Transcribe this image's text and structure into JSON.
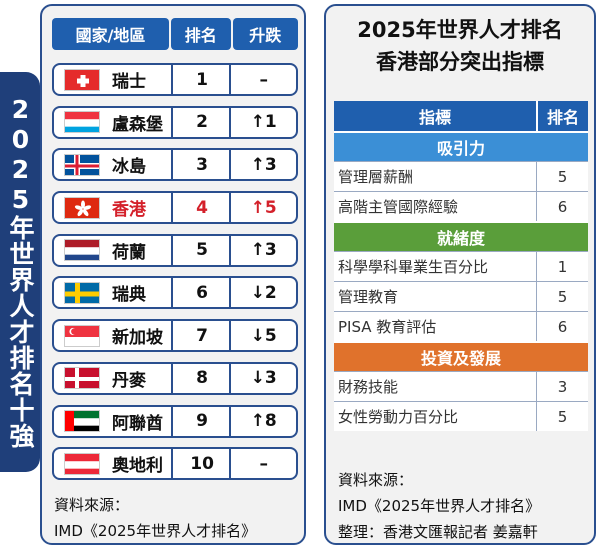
{
  "left": {
    "vertical_title": "2025年世界人才排名十強",
    "headers": {
      "country": "國家/地區",
      "rank": "排名",
      "change": "升跌"
    },
    "rows": [
      {
        "name": "瑞士",
        "rank": "1",
        "change": "–",
        "flag": "switzerland-flag"
      },
      {
        "name": "盧森堡",
        "rank": "2",
        "change": "↑1",
        "flag": "luxembourg-flag"
      },
      {
        "name": "冰島",
        "rank": "3",
        "change": "↑3",
        "flag": "iceland-flag"
      },
      {
        "name": "香港",
        "rank": "4",
        "change": "↑5",
        "flag": "hong-kong-flag"
      },
      {
        "name": "荷蘭",
        "rank": "5",
        "change": "↑3",
        "flag": "netherlands-flag"
      },
      {
        "name": "瑞典",
        "rank": "6",
        "change": "↓2",
        "flag": "sweden-flag"
      },
      {
        "name": "新加坡",
        "rank": "7",
        "change": "↓5",
        "flag": "singapore-flag"
      },
      {
        "name": "丹麥",
        "rank": "8",
        "change": "↓3",
        "flag": "denmark-flag"
      },
      {
        "name": "阿聯酋",
        "rank": "9",
        "change": "↑8",
        "flag": "uae-flag"
      },
      {
        "name": "奧地利",
        "rank": "10",
        "change": "–",
        "flag": "austria-flag"
      }
    ],
    "source_label": "資料來源：",
    "source_text": "IMD《2025年世界人才排名》"
  },
  "right": {
    "title_line1": "2025年世界人才排名",
    "title_line2": "香港部分突出指標",
    "headers": {
      "indicator": "指標",
      "rank": "排名"
    },
    "categories": [
      {
        "name": "吸引力",
        "items": [
          {
            "indicator": "管理層薪酬",
            "rank": "5"
          },
          {
            "indicator": "高階主管國際經驗",
            "rank": "6"
          }
        ]
      },
      {
        "name": "就緒度",
        "items": [
          {
            "indicator": "科學學科畢業生百分比",
            "rank": "1"
          },
          {
            "indicator": "管理教育",
            "rank": "5"
          },
          {
            "indicator": "PISA 教育評估",
            "rank": "6"
          }
        ]
      },
      {
        "name": "投資及發展",
        "items": [
          {
            "indicator": "財務技能",
            "rank": "3"
          },
          {
            "indicator": "女性勞動力百分比",
            "rank": "5"
          }
        ]
      }
    ],
    "source_label": "資料來源：",
    "source_text": "IMD《2025年世界人才排名》",
    "credit": "整理：香港文匯報記者 姜嘉軒"
  },
  "colors": {
    "navy": "#1f3f7a",
    "header_blue": "#1f5fae",
    "hk_red": "#d4202a",
    "cat_attract": "#3b8fd6",
    "cat_ready": "#5a9e3a",
    "cat_invest": "#e0722c"
  }
}
